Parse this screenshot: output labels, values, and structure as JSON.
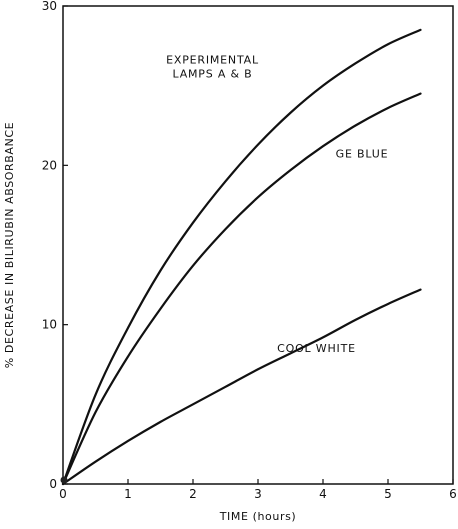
{
  "chart_data": {
    "type": "line",
    "title": "",
    "xlabel": "TIME (hours)",
    "ylabel": "% DECREASE IN BILIRUBIN ABSORBANCE",
    "xlim": [
      0,
      6
    ],
    "ylim": [
      0,
      30
    ],
    "x_ticks": [
      "0",
      "1",
      "2",
      "3",
      "4",
      "5",
      "6"
    ],
    "y_ticks": [
      "0",
      "10",
      "20",
      "30"
    ],
    "grid": false,
    "legend": "none",
    "line_color": "#111111",
    "series": [
      {
        "x": [
          0,
          0.5,
          1,
          1.5,
          2,
          2.5,
          3,
          3.5,
          4,
          4.5,
          5,
          5.5
        ],
        "y": [
          0,
          5.6,
          9.8,
          13.4,
          16.4,
          19.0,
          21.3,
          23.3,
          25.0,
          26.4,
          27.6,
          28.5
        ]
      },
      {
        "x": [
          0,
          0.5,
          1,
          1.5,
          2,
          2.5,
          3,
          3.5,
          4,
          4.5,
          5,
          5.5
        ],
        "y": [
          0,
          4.5,
          8.0,
          11.0,
          13.7,
          16.0,
          18.0,
          19.7,
          21.2,
          22.5,
          23.6,
          24.5
        ]
      },
      {
        "x": [
          0,
          0.5,
          1,
          1.5,
          2,
          2.5,
          3,
          3.5,
          4,
          4.5,
          5,
          5.5
        ],
        "y": [
          0,
          1.4,
          2.7,
          3.9,
          5.0,
          6.1,
          7.2,
          8.2,
          9.2,
          10.3,
          11.3,
          12.2
        ]
      }
    ],
    "annotations": [
      {
        "lines": [
          "EXPERIMENTAL",
          "LAMPS A & B"
        ],
        "x": 2.3,
        "y": 26.4
      },
      {
        "lines": [
          "GE BLUE"
        ],
        "x": 4.6,
        "y": 20.5
      },
      {
        "lines": [
          "COOL WHITE"
        ],
        "x": 3.9,
        "y": 8.3
      }
    ]
  }
}
